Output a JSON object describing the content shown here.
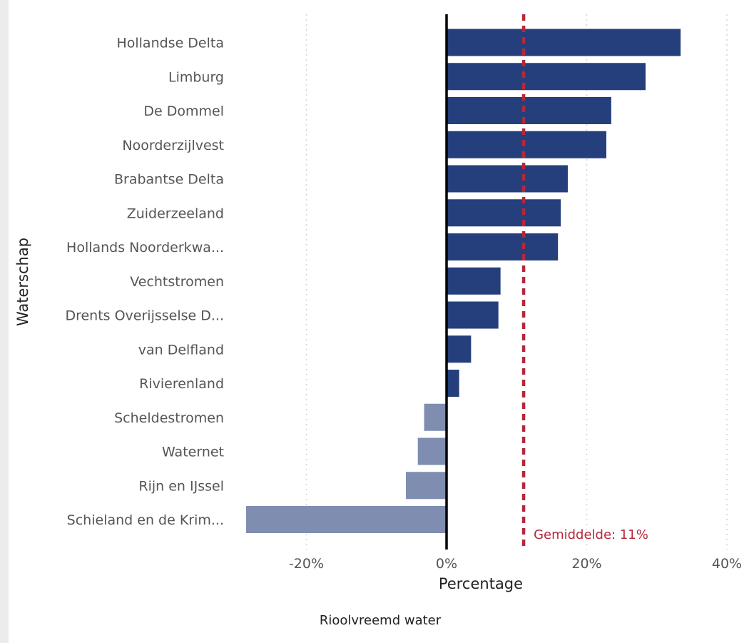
{
  "chart_data": {
    "type": "bar",
    "orientation": "horizontal",
    "categories": [
      "Hollandse Delta",
      "Limburg",
      "De Dommel",
      "Noorderzijlvest",
      "Brabantse Delta",
      "Zuiderzeeland",
      "Hollands Noorderkwa...",
      "Vechtstromen",
      "Drents Overijsselse D...",
      "van Delfland",
      "Rivierenland",
      "Scheldestromen",
      "Waternet",
      "Rijn en IJssel",
      "Schieland en de Krim..."
    ],
    "values": [
      33.4,
      28.4,
      23.5,
      22.8,
      17.3,
      16.3,
      15.9,
      7.7,
      7.4,
      3.5,
      1.8,
      -3.2,
      -4.1,
      -5.8,
      -28.6
    ],
    "xlabel": "Percentage",
    "ylabel": "Waterschap",
    "xlim": [
      -30,
      40
    ],
    "xticks": [
      "-20%",
      "0%",
      "20%",
      "40%"
    ],
    "xtick_values": [
      -20,
      0,
      20,
      40
    ],
    "average": {
      "value": 11,
      "label": "Gemiddelde: 11%",
      "color": "#b5283a"
    },
    "colors": {
      "positive": "#243f7c",
      "negative": "#7e8db0",
      "zero_line": "#000000",
      "grid": "#d4d4d4"
    },
    "grid": "vertical-dotted",
    "legend": "none"
  },
  "caption": "Rioolvreemd water"
}
